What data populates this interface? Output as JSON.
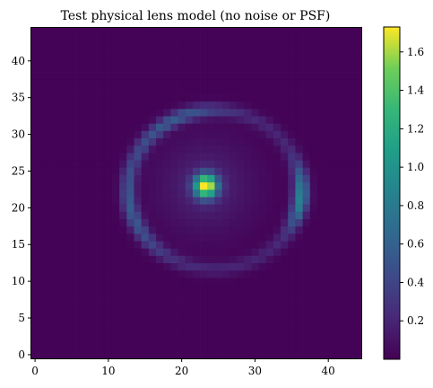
{
  "chart_data": {
    "type": "heatmap",
    "title": "Test physical lens model (no noise or PSF)",
    "xlabel": "",
    "ylabel": "",
    "grid_size": 45,
    "xlim": [
      -0.5,
      44.5
    ],
    "ylim": [
      -0.5,
      44.5
    ],
    "x_ticks": [
      0,
      10,
      20,
      30,
      40
    ],
    "y_ticks": [
      0,
      5,
      10,
      15,
      20,
      25,
      30,
      35,
      40
    ],
    "colormap": "viridis",
    "colorbar": {
      "ticks": [
        "0.2",
        "0.4",
        "0.6",
        "0.8",
        "1.0",
        "1.2",
        "1.4",
        "1.6"
      ],
      "tick_values": [
        0.2,
        0.4,
        0.6,
        0.8,
        1.0,
        1.2,
        1.4,
        1.6
      ],
      "min": 0.0,
      "max": 1.73
    },
    "components": {
      "lens_galaxy": {
        "center": [
          23.3,
          23.0
        ],
        "peak": 1.72,
        "sigma": 1.1
      },
      "lens_halo": {
        "center": [
          23.3,
          23.0
        ],
        "peak": 0.18,
        "sigma": 4.5
      },
      "einstein_ring": {
        "center": [
          24.5,
          22.5
        ],
        "radius_x": 11.8,
        "radius_y": 10.8,
        "width": 0.7,
        "base_brightness": 0.18,
        "bright_arcs": [
          {
            "angle_deg": 120,
            "amplitude": 0.35,
            "spread_deg": 25
          },
          {
            "angle_deg": 195,
            "amplitude": 0.35,
            "spread_deg": 25
          },
          {
            "angle_deg": -5,
            "amplitude": 0.7,
            "spread_deg": 14
          }
        ]
      },
      "background_level": 0.01
    }
  }
}
